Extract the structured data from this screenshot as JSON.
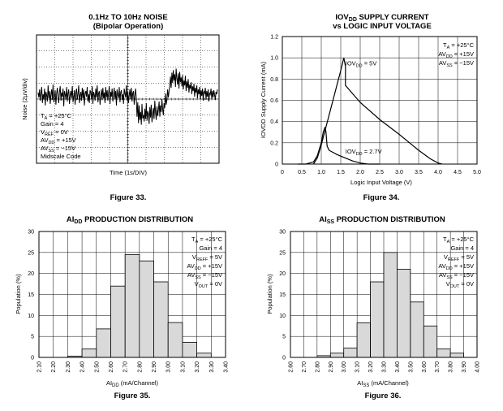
{
  "chart_data": [
    {
      "type": "line",
      "title": "0.1Hz TO 10Hz NOISE",
      "subtitle": "(Bipolar Operation)",
      "xlabel": "Time (1s/DIV)",
      "ylabel": "Noise (2µV/div)",
      "figure": "Figure 33.",
      "grid": true,
      "x_divisions": 10,
      "y_divisions": 8,
      "y_unit_per_div": 2,
      "annotations": [
        "T_A = +25°C",
        "Gain = 4",
        "V_REF = 0V",
        "AV_DD = +15V",
        "AV_SS = −15V",
        "Midscale Code"
      ],
      "annotation_lines": [
        {
          "main": "T",
          "sub": "A",
          "rest": " = +25°C"
        },
        {
          "main": "Gain = 4",
          "sub": "",
          "rest": ""
        },
        {
          "main": "V",
          "sub": "REF",
          "rest": " = 0V"
        },
        {
          "main": "AV",
          "sub": "DD",
          "rest": " = +15V"
        },
        {
          "main": "AV",
          "sub": "SS",
          "rest": " = −15V"
        },
        {
          "main": "Midscale Code",
          "sub": "",
          "rest": ""
        }
      ],
      "noise_trace_uV": [
        0.4,
        -0.2,
        0.8,
        -0.6,
        0.3,
        1.1,
        -0.9,
        0.2,
        -0.4,
        0.9,
        -1.2,
        0.5,
        0.1,
        -0.7,
        1.3,
        -0.3,
        0.6,
        -1.0,
        0.2,
        0.8,
        -0.5,
        1.4,
        -0.8,
        0.0,
        0.7,
        -1.1,
        0.3,
        1.0,
        -0.2,
        -0.9,
        0.5,
        1.2,
        -0.6,
        0.4,
        -0.1,
        0.9,
        -1.3,
        0.6,
        0.2,
        -0.4,
        1.1,
        -0.7,
        0.3,
        0.8,
        -1.0,
        0.1,
        0.6,
        -0.3,
        1.2,
        -0.8,
        -0.2,
        0.7,
        -1.1,
        0.4,
        0.9,
        -0.5,
        0.2,
        1.3,
        -0.9,
        0.0,
        0.5,
        -0.6,
        1.0,
        -0.3,
        0.8,
        -1.2,
        0.3,
        0.6,
        -0.1,
        1.1,
        -0.7,
        0.2,
        -0.9,
        0.7,
        0.4,
        -0.4,
        1.2,
        -1.0,
        0.5,
        0.1,
        -0.6,
        0.9,
        -0.2,
        1.3,
        -0.8,
        0.3,
        0.6,
        -1.1,
        0.0,
        0.8,
        -0.5,
        1.0,
        -0.3,
        0.4,
        -0.9,
        1.1,
        -0.2,
        0.7,
        -0.6,
        0.3,
        1.2,
        -1.0,
        0.5,
        -0.1,
        0.9,
        -0.7,
        0.2,
        1.0,
        -0.4,
        0.6,
        -1.2,
        0.8,
        0.1,
        -0.3,
        1.1,
        -0.8,
        0.4,
        0.7,
        -0.5,
        0.2,
        -1.0,
        0.9,
        0.3,
        -0.2,
        1.3,
        -0.6,
        0.5,
        -0.9,
        0.1,
        0.8,
        -0.4,
        1.0,
        -0.7,
        0.3,
        0.6,
        -1.1,
        0.2,
        0.9,
        -0.3,
        -2.6,
        -0.8,
        -3.4,
        -1.2,
        -3.0,
        -2.0,
        -3.6,
        -1.0,
        -2.8,
        -2.4,
        -3.2,
        -1.6,
        -2.9,
        -0.9,
        -3.1,
        -1.9,
        -2.2,
        -3.5,
        -1.4,
        -2.7,
        -1.1,
        -3.3,
        -2.3,
        -1.5,
        -2.9,
        -0.6,
        -2.1,
        -3.0,
        -1.3,
        -2.5,
        -1.8,
        -0.7,
        -2.6,
        -1.2,
        -2.0,
        -0.4,
        -1.7,
        -2.4,
        -0.9,
        -1.5,
        0.3,
        -1.1,
        -0.5,
        0.8,
        -0.2,
        0.6,
        1.2,
        2.4,
        1.0,
        2.9,
        1.6,
        3.2,
        1.9,
        2.7,
        1.1,
        3.4,
        2.2,
        1.4,
        2.8,
        0.9,
        3.0,
        1.7,
        2.3,
        1.2,
        2.6,
        0.8,
        1.9,
        1.3,
        2.5,
        0.6,
        1.8,
        1.0,
        2.1,
        0.4,
        1.4,
        0.9,
        1.7,
        0.2,
        1.2,
        0.6,
        1.5,
        -0.1,
        1.0,
        0.4,
        1.3,
        -0.3,
        0.8,
        0.2,
        1.1,
        -0.4,
        0.7,
        0.0,
        0.9,
        -0.6,
        0.5,
        0.3,
        1.0,
        -0.5,
        0.6,
        -0.1,
        0.8,
        -0.7,
        0.4,
        0.2,
        0.9,
        -0.4,
        0.6,
        -0.2,
        0.7,
        0.1,
        -0.5,
        0.5,
        0.2,
        0.8
      ]
    },
    {
      "type": "line",
      "title_main": "IOV",
      "title_sub": "DD",
      "title_rest": " SUPPLY CURRENT",
      "subtitle": "vs LOGIC INPUT VOLTAGE",
      "xlabel": "Logic Input Voltage (V)",
      "ylabel": "IOVDD Supply Current (mA)",
      "figure": "Figure 34.",
      "xlim": [
        0,
        5.0
      ],
      "ylim": [
        0,
        1.2
      ],
      "x_ticks": [
        "0",
        "0.5",
        "1.0",
        "1.5",
        "2.0",
        "2.5",
        "3.0",
        "3.5",
        "4.0",
        "4.5",
        "5.0"
      ],
      "y_ticks": [
        "0",
        "0.2",
        "0.4",
        "0.6",
        "0.8",
        "1.0",
        "1.2"
      ],
      "grid": true,
      "annotations": [
        "T_A = +25°C",
        "AV_DD = +15V",
        "AV_SS = −15V"
      ],
      "annotation_lines": [
        {
          "main": "T",
          "sub": "A",
          "rest": " = +25°C"
        },
        {
          "main": "AV",
          "sub": "DD",
          "rest": " = +15V"
        },
        {
          "main": "AV",
          "sub": "SS",
          "rest": " = −15V"
        }
      ],
      "series": [
        {
          "name": "IOVDD = 5V",
          "label_main": "IOV",
          "label_sub": "DD",
          "label_rest": " = 5V",
          "x": [
            0.8,
            0.9,
            1.0,
            1.1,
            1.2,
            1.3,
            1.4,
            1.5,
            1.58,
            1.62,
            1.62,
            2.0,
            2.5,
            3.0,
            3.5,
            3.8,
            4.0,
            4.1
          ],
          "y": [
            0.0,
            0.06,
            0.18,
            0.32,
            0.46,
            0.6,
            0.74,
            0.88,
            1.0,
            0.92,
            0.74,
            0.58,
            0.42,
            0.28,
            0.13,
            0.05,
            0.01,
            0.0
          ]
        },
        {
          "name": "IOVDD = 2.7V",
          "label_main": "IOV",
          "label_sub": "DD",
          "label_rest": " = 2.7V",
          "x": [
            0.4,
            0.6,
            0.8,
            0.9,
            1.0,
            1.05,
            1.1,
            1.12,
            1.15,
            1.2,
            1.4,
            1.6,
            1.8,
            2.0,
            2.2,
            2.5
          ],
          "y": [
            0.0,
            0.0,
            0.02,
            0.08,
            0.2,
            0.3,
            0.35,
            0.3,
            0.17,
            0.13,
            0.09,
            0.06,
            0.03,
            0.01,
            0.0,
            0.0
          ]
        }
      ]
    },
    {
      "type": "bar",
      "title_main": "AI",
      "title_sub": "DD",
      "title_rest": " PRODUCTION DISTRIBUTION",
      "xlabel_main": "AI",
      "xlabel_sub": "DD",
      "xlabel_rest": " (mA/Channel)",
      "ylabel": "Population (%)",
      "figure": "Figure 35.",
      "ylim": [
        0,
        30
      ],
      "y_ticks": [
        "0",
        "5",
        "10",
        "15",
        "20",
        "25",
        "30"
      ],
      "categories": [
        "2.10",
        "2.20",
        "2.30",
        "2.40",
        "2.50",
        "2.60",
        "2.70",
        "2.80",
        "2.90",
        "3.00",
        "3.10",
        "3.20",
        "3.30",
        "3.40"
      ],
      "bin_values": [
        0,
        0,
        0.3,
        2,
        6.8,
        17,
        24.5,
        23,
        18,
        8.3,
        3.6,
        1,
        0
      ],
      "annotations": [
        "T_A = +25°C",
        "Gain = 4",
        "V_REFF = 5V",
        "AV_DD = +15V",
        "AV_SS = −15V",
        "V_OUT = 0V"
      ],
      "annotation_lines": [
        {
          "main": "T",
          "sub": "A",
          "rest": " = +25°C"
        },
        {
          "main": "Gain = 4",
          "sub": "",
          "rest": ""
        },
        {
          "main": "V",
          "sub": "REFF",
          "rest": " = 5V"
        },
        {
          "main": "AV",
          "sub": "DD",
          "rest": " = +15V"
        },
        {
          "main": "AV",
          "sub": "SS",
          "rest": " = −15V"
        },
        {
          "main": "V",
          "sub": "OUT",
          "rest": " = 0V"
        }
      ]
    },
    {
      "type": "bar",
      "title_main": "AI",
      "title_sub": "SS",
      "title_rest": " PRODUCTION DISTRIBUTION",
      "xlabel_main": "AI",
      "xlabel_sub": "SS",
      "xlabel_rest": " (mA/Channel)",
      "ylabel": "Population (%)",
      "figure": "Figure 36.",
      "ylim": [
        0,
        30
      ],
      "y_ticks": [
        "0",
        "5",
        "10",
        "15",
        "20",
        "25",
        "30"
      ],
      "categories": [
        "2.60",
        "2.70",
        "2.80",
        "2.90",
        "3.00",
        "3.10",
        "3.20",
        "3.30",
        "3.40",
        "3.50",
        "3.60",
        "3.70",
        "3.80",
        "3.90",
        "4.00"
      ],
      "bin_values": [
        0,
        0,
        0.4,
        1,
        2.2,
        8.2,
        18,
        25,
        21,
        13.2,
        7.5,
        2,
        1,
        0
      ],
      "annotations": [
        "T_A = +25°C",
        "Gain = 4",
        "V_REFF = 5V",
        "AV_DD = +15V",
        "AV_SS = −15V",
        "V_OUT = 0V"
      ],
      "annotation_lines": [
        {
          "main": "T",
          "sub": "A",
          "rest": " = +25°C"
        },
        {
          "main": "Gain = 4",
          "sub": "",
          "rest": ""
        },
        {
          "main": "V",
          "sub": "REFF",
          "rest": " = 5V"
        },
        {
          "main": "AV",
          "sub": "DD",
          "rest": " = +15V"
        },
        {
          "main": "AV",
          "sub": "SS",
          "rest": " = −15V"
        },
        {
          "main": "V",
          "sub": "OUT",
          "rest": " = 0V"
        }
      ]
    }
  ]
}
